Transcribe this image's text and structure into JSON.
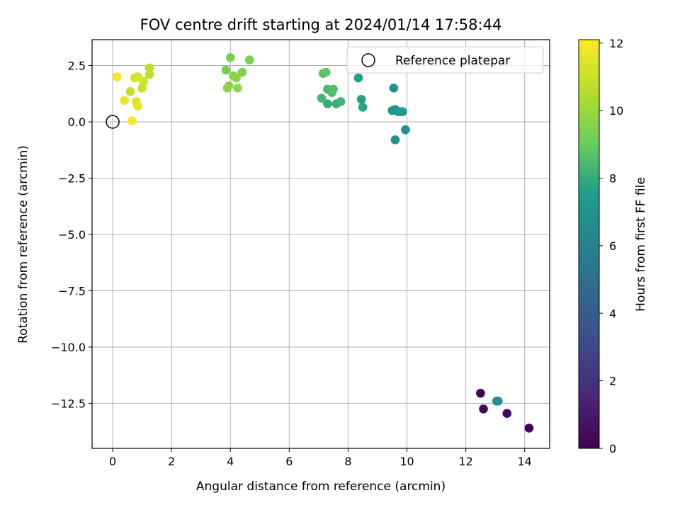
{
  "chart_data": {
    "type": "scatter",
    "title": "FOV centre drift starting at 2024/01/14 17:58:44",
    "xlabel": "Angular distance from reference (arcmin)",
    "ylabel": "Rotation from reference (arcmin)",
    "xlim": [
      -0.7,
      14.85
    ],
    "ylim": [
      -14.5,
      3.65
    ],
    "xticks": [
      "0",
      "2",
      "4",
      "6",
      "8",
      "10",
      "12",
      "14"
    ],
    "xtick_values": [
      0,
      2,
      4,
      6,
      8,
      10,
      12,
      14
    ],
    "yticks": [
      "2.5",
      "0.0",
      "−2.5",
      "−5.0",
      "−7.5",
      "−10.0",
      "−12.5"
    ],
    "ytick_values": [
      2.5,
      0.0,
      -2.5,
      -5.0,
      -7.5,
      -10.0,
      -12.5
    ],
    "grid": true,
    "legend": {
      "position": "top-right",
      "entries": [
        "Reference platepar"
      ]
    },
    "reference_point": {
      "x": 0.0,
      "y": 0.0
    },
    "colorbar": {
      "label": "Hours from first FF file",
      "cmap": "viridis",
      "range": [
        0,
        12.1
      ],
      "ticks": [
        "0",
        "2",
        "4",
        "6",
        "8",
        "10",
        "12"
      ],
      "tick_values": [
        0,
        2,
        4,
        6,
        8,
        10,
        12
      ],
      "stops": [
        "#440154",
        "#482777",
        "#3f4a8a",
        "#31678e",
        "#26838f",
        "#1f9d8a",
        "#6cce5a",
        "#b6de2b",
        "#fee825"
      ]
    },
    "points": [
      {
        "x": 12.5,
        "y": -12.05,
        "c": 0.0
      },
      {
        "x": 12.6,
        "y": -12.75,
        "c": 0.2
      },
      {
        "x": 13.4,
        "y": -12.95,
        "c": 0.3
      },
      {
        "x": 14.15,
        "y": -13.6,
        "c": 0.1
      },
      {
        "x": 13.05,
        "y": -12.4,
        "c": 6.5
      },
      {
        "x": 13.1,
        "y": -12.4,
        "c": 6.6
      },
      {
        "x": 9.6,
        "y": -0.8,
        "c": 6.8
      },
      {
        "x": 9.95,
        "y": -0.35,
        "c": 6.9
      },
      {
        "x": 9.55,
        "y": 1.5,
        "c": 7.0
      },
      {
        "x": 9.5,
        "y": 0.5,
        "c": 7.1
      },
      {
        "x": 9.6,
        "y": 0.55,
        "c": 7.2
      },
      {
        "x": 9.7,
        "y": 0.45,
        "c": 7.3
      },
      {
        "x": 9.85,
        "y": 0.45,
        "c": 7.4
      },
      {
        "x": 9.8,
        "y": 0.45,
        "c": 7.5
      },
      {
        "x": 8.35,
        "y": 1.95,
        "c": 7.6
      },
      {
        "x": 8.45,
        "y": 1.0,
        "c": 7.7
      },
      {
        "x": 8.5,
        "y": 0.65,
        "c": 7.8
      },
      {
        "x": 7.3,
        "y": 0.8,
        "c": 8.0
      },
      {
        "x": 7.6,
        "y": 0.8,
        "c": 8.1
      },
      {
        "x": 7.75,
        "y": 0.9,
        "c": 8.2
      },
      {
        "x": 7.1,
        "y": 1.05,
        "c": 8.3
      },
      {
        "x": 7.3,
        "y": 1.45,
        "c": 8.4
      },
      {
        "x": 7.45,
        "y": 1.3,
        "c": 8.5
      },
      {
        "x": 7.5,
        "y": 1.45,
        "c": 8.6
      },
      {
        "x": 7.15,
        "y": 2.15,
        "c": 8.7
      },
      {
        "x": 7.25,
        "y": 2.2,
        "c": 8.8
      },
      {
        "x": 3.85,
        "y": 2.3,
        "c": 9.2
      },
      {
        "x": 4.0,
        "y": 2.85,
        "c": 9.3
      },
      {
        "x": 4.65,
        "y": 2.75,
        "c": 9.4
      },
      {
        "x": 4.4,
        "y": 2.2,
        "c": 9.5
      },
      {
        "x": 4.1,
        "y": 2.05,
        "c": 9.6
      },
      {
        "x": 4.2,
        "y": 1.95,
        "c": 9.7
      },
      {
        "x": 3.95,
        "y": 1.6,
        "c": 9.6
      },
      {
        "x": 3.9,
        "y": 1.5,
        "c": 9.7
      },
      {
        "x": 4.25,
        "y": 1.5,
        "c": 9.8
      },
      {
        "x": 1.25,
        "y": 2.4,
        "c": 10.7
      },
      {
        "x": 1.25,
        "y": 2.1,
        "c": 10.8
      },
      {
        "x": 0.6,
        "y": 1.35,
        "c": 10.9
      },
      {
        "x": 1.0,
        "y": 1.5,
        "c": 11.0
      },
      {
        "x": 1.05,
        "y": 1.8,
        "c": 11.1
      },
      {
        "x": 0.85,
        "y": 2.0,
        "c": 11.2
      },
      {
        "x": 0.75,
        "y": 1.95,
        "c": 11.3
      },
      {
        "x": 0.8,
        "y": 0.9,
        "c": 11.4
      },
      {
        "x": 0.85,
        "y": 0.7,
        "c": 11.5
      },
      {
        "x": 0.4,
        "y": 0.95,
        "c": 11.7
      },
      {
        "x": 0.15,
        "y": 2.0,
        "c": 11.9
      },
      {
        "x": 0.65,
        "y": 0.05,
        "c": 12.0
      }
    ]
  }
}
